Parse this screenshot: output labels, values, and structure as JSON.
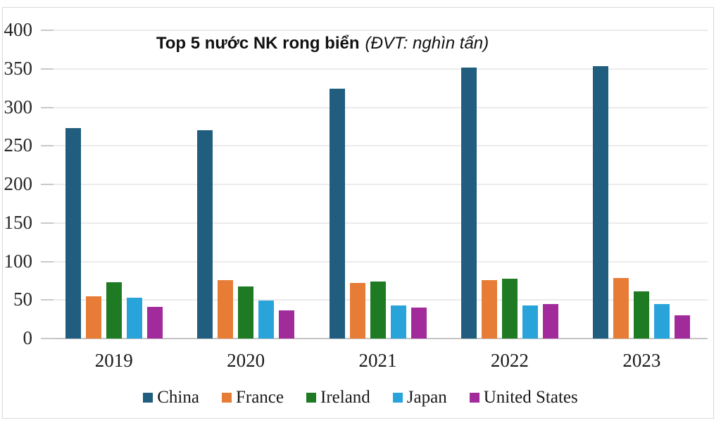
{
  "title": {
    "main": "Top 5 nước NK rong biển",
    "unit": "(ĐVT: nghìn tấn)"
  },
  "chart_data": {
    "type": "bar",
    "title": "Top 5 nước NK rong biển",
    "subtitle": "(ĐVT: nghìn tấn)",
    "unit": "nghìn tấn",
    "categories": [
      "2019",
      "2020",
      "2021",
      "2022",
      "2023"
    ],
    "series": [
      {
        "name": "China",
        "color": "#205d7e",
        "values": [
          273,
          270,
          324,
          352,
          353
        ]
      },
      {
        "name": "France",
        "color": "#e77c36",
        "values": [
          55,
          76,
          72,
          76,
          79
        ]
      },
      {
        "name": "Ireland",
        "color": "#1e7a23",
        "values": [
          73,
          68,
          74,
          78,
          61
        ]
      },
      {
        "name": "Japan",
        "color": "#29a4da",
        "values": [
          53,
          49,
          43,
          43,
          45
        ]
      },
      {
        "name": "United States",
        "color": "#a22b9c",
        "values": [
          41,
          37,
          40,
          45,
          30
        ]
      }
    ],
    "ylim": [
      0,
      400
    ],
    "yticks": [
      0,
      50,
      100,
      150,
      200,
      250,
      300,
      350,
      400
    ],
    "xlabel": "",
    "ylabel": "",
    "grid": true,
    "legend_position": "bottom"
  },
  "colors": {
    "gridline": "#ebebeb",
    "baseline": "#c4c4c4",
    "frame_border": "#d9d9d9",
    "axis_text": "#1a1a1a"
  }
}
